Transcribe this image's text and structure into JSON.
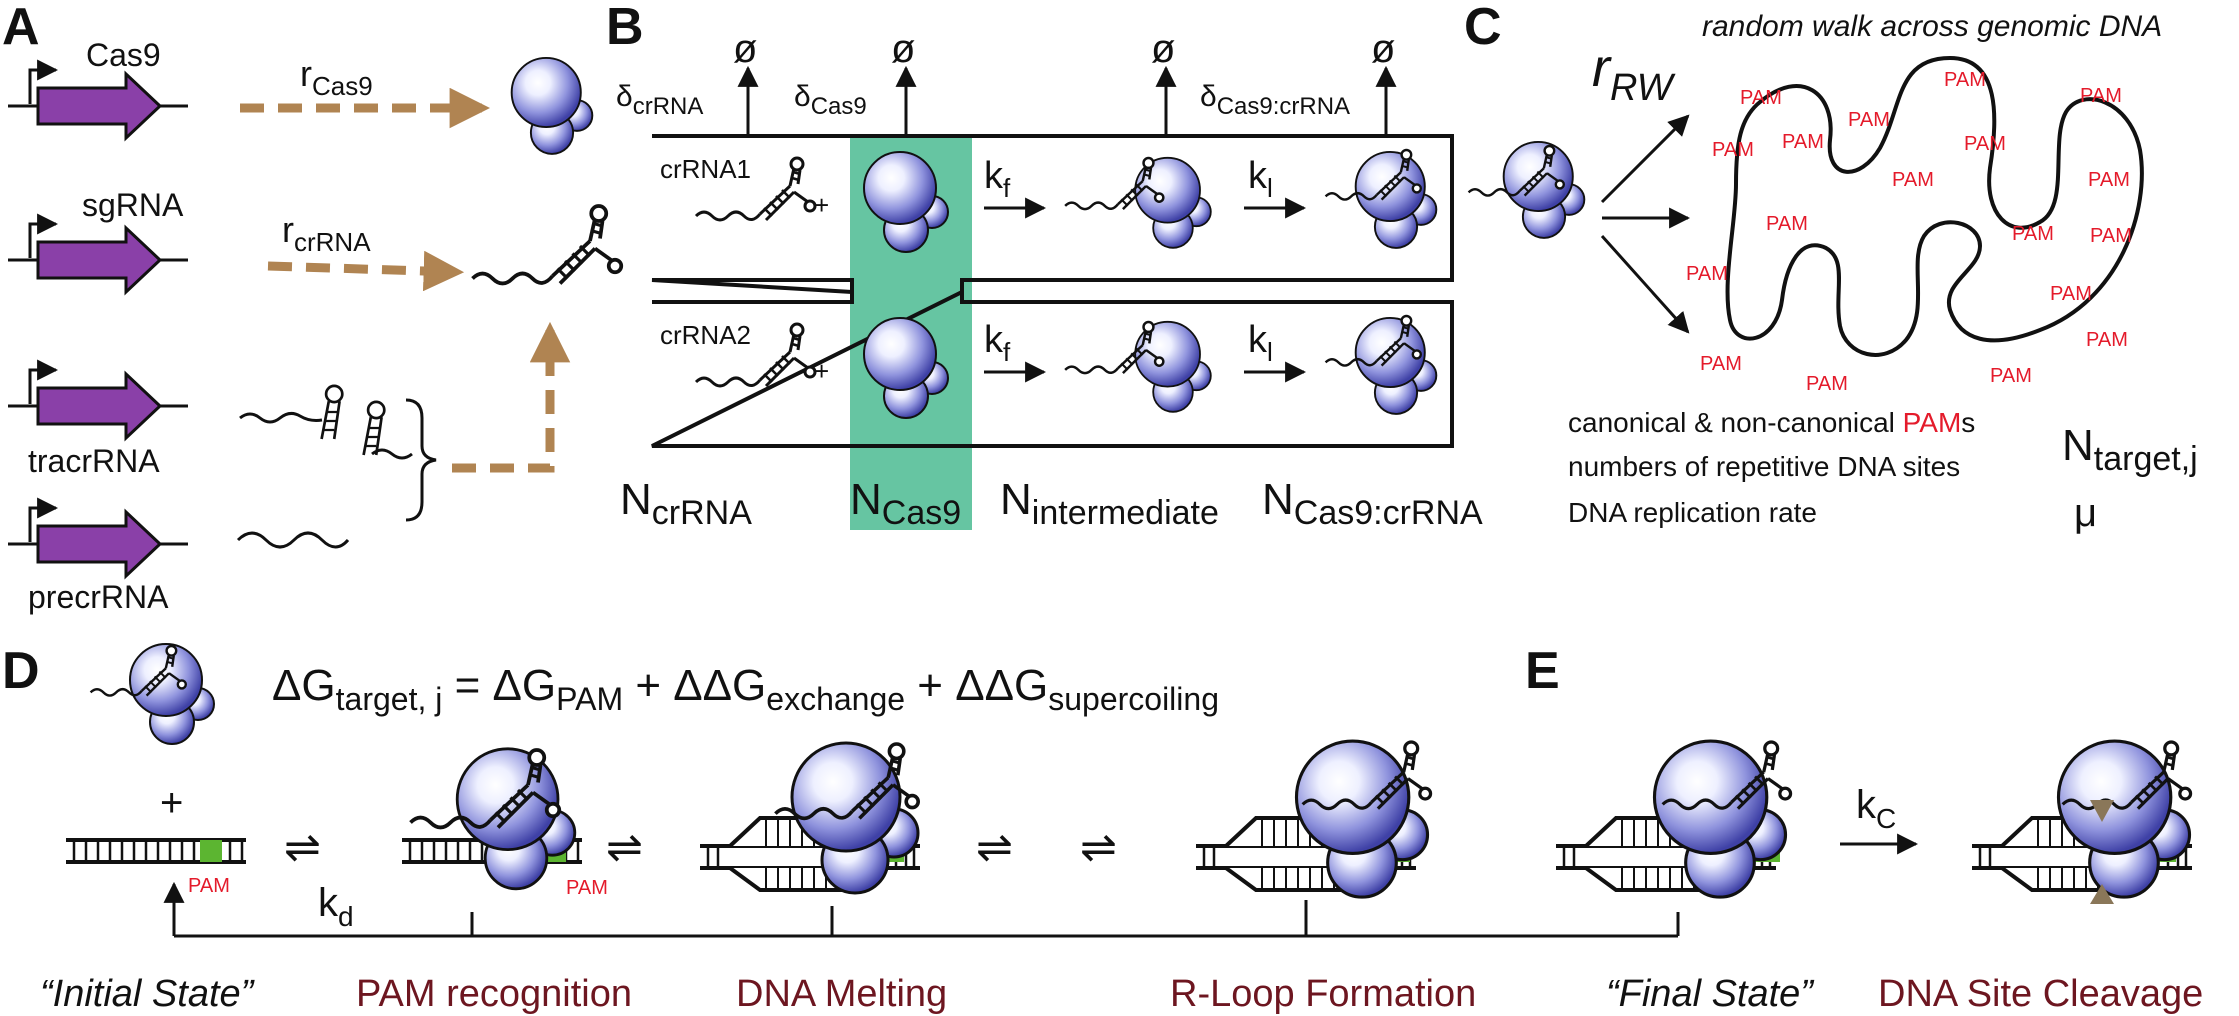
{
  "panels": {
    "a": "A",
    "b": "B",
    "c": "C",
    "d": "D",
    "e": "E"
  },
  "panel_a": {
    "genes": [
      "Cas9",
      "sgRNA",
      "tracrRNA",
      "precrRNA"
    ],
    "rate_cas9": {
      "main": "r",
      "sub": "Cas9"
    },
    "rate_crrna": {
      "main": "r",
      "sub": "crRNA"
    }
  },
  "panel_b": {
    "null_symbol": "ø",
    "delta_crrna": {
      "main": "δ",
      "sub": "crRNA"
    },
    "delta_cas9": {
      "main": "δ",
      "sub": "Cas9"
    },
    "delta_complex": {
      "main": "δ",
      "sub": "Cas9:crRNA"
    },
    "row1_label": "crRNA1",
    "row2_label": "crRNA2",
    "plus": "+",
    "kf": {
      "main": "k",
      "sub": "f"
    },
    "kl": {
      "main": "k",
      "sub": "l"
    },
    "n_crrna": {
      "main": "N",
      "sub": "crRNA"
    },
    "n_cas9": {
      "main": "N",
      "sub": "Cas9"
    },
    "n_intermediate": {
      "main": "N",
      "sub": "intermediate"
    },
    "n_complex": {
      "main": "N",
      "sub": "Cas9:crRNA"
    },
    "cas9_highlight_color": "#66c5a2"
  },
  "panel_c": {
    "title": "random walk across genomic DNA",
    "rate": {
      "main": "r",
      "sub": "RW"
    },
    "pam_label": "PAM",
    "notes": {
      "pams_prefix": "canonical & non-canonical ",
      "pams_red": "PAM",
      "pams_suffix": "s",
      "repetitive": "numbers of repetitive DNA sites",
      "replication": "DNA replication rate"
    },
    "n_target": {
      "main": "N",
      "sub": "target,j"
    },
    "mu": "μ"
  },
  "panel_d": {
    "equation": {
      "lhs_main": "ΔG",
      "lhs_sub": "target, j",
      "eq": " = ",
      "t1_main": "ΔG",
      "t1_sub": "PAM",
      "plus1": " + ",
      "t2_main": "ΔΔG",
      "t2_sub": "exchange",
      "plus2": " + ",
      "t3_main": "ΔΔG",
      "t3_sub": "supercoiling"
    },
    "plus": "+",
    "pam_label": "PAM",
    "kd": {
      "main": "k",
      "sub": "d"
    }
  },
  "panel_e": {
    "kc": {
      "main": "k",
      "sub": "C"
    }
  },
  "bottom_labels": {
    "initial": "“Initial State”",
    "pam_recognition": "PAM recognition",
    "dna_melting": "DNA Melting",
    "r_loop": "R-Loop Formation",
    "final": "“Final State”",
    "cleavage": "DNA Site Cleavage"
  },
  "colors": {
    "gene_arrow": "#8a40a8",
    "dashed_arrow": "#b08452",
    "pam_text": "#e41b2b",
    "stage_label": "#6d1620",
    "pam_dna_stripe": "#5cb531",
    "protein": "#5a5cc4"
  }
}
